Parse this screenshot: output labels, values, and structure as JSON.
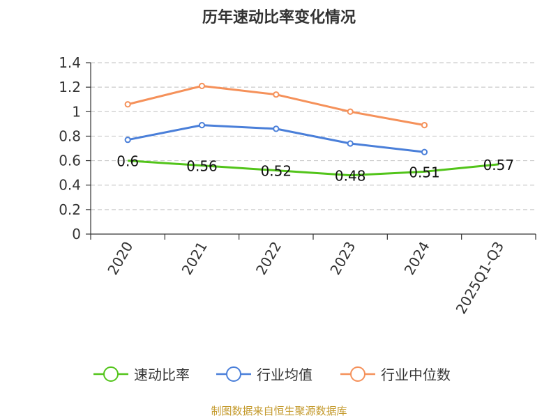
{
  "chart_data": {
    "type": "line",
    "title": "历年速动比率变化情况",
    "categories": [
      "2020",
      "2021",
      "2022",
      "2023",
      "2024",
      "2025Q1-Q3"
    ],
    "ylim": [
      0,
      1.4
    ],
    "yticks": [
      "0",
      "0.2",
      "0.4",
      "0.6",
      "0.8",
      "1",
      "1.2",
      "1.4"
    ],
    "ytick_values": [
      0,
      0.2,
      0.4,
      0.6,
      0.8,
      1.0,
      1.2,
      1.4
    ],
    "grid": true,
    "legend_position": "bottom",
    "series": [
      {
        "name": "速动比率",
        "color": "#52c41a",
        "values": [
          0.6,
          0.56,
          0.52,
          0.48,
          0.51,
          0.57
        ],
        "labels": [
          "0.6",
          "0.56",
          "0.52",
          "0.48",
          "0.51",
          "0.57"
        ]
      },
      {
        "name": "行业均值",
        "color": "#4a7fd9",
        "values": [
          0.77,
          0.89,
          0.86,
          0.74,
          0.67,
          null
        ]
      },
      {
        "name": "行业中位数",
        "color": "#f5915a",
        "values": [
          1.06,
          1.21,
          1.14,
          1.0,
          0.89,
          null
        ]
      }
    ],
    "source": "制图数据来自恒生聚源数据库"
  }
}
